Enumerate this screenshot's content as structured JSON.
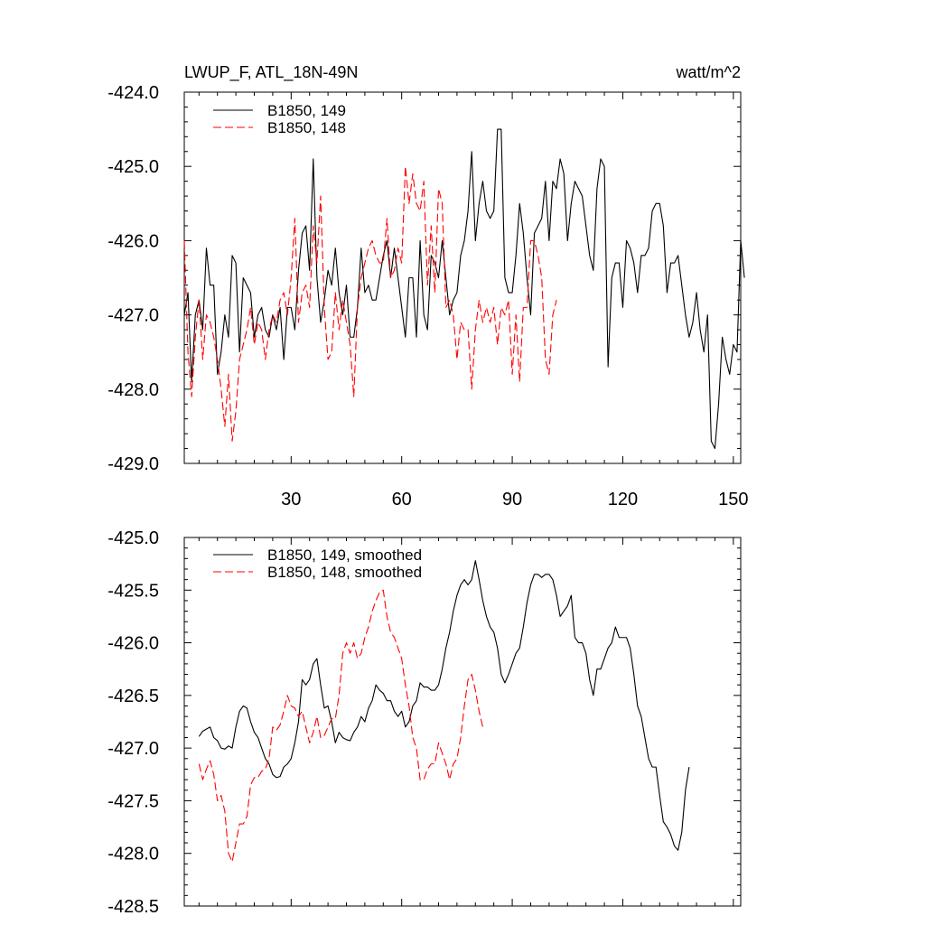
{
  "header": {
    "title": "LWUP_F, ATL_18N-49N",
    "units": "watt/m^2"
  },
  "colors": {
    "series_149": "#000000",
    "series_148": "#ff0000"
  },
  "chart_data": [
    {
      "type": "line",
      "title": "LWUP_F, ATL_18N-49N",
      "units": "watt/m^2",
      "xlabel": "",
      "ylabel": "",
      "xlim": [
        1,
        152
      ],
      "ylim": [
        -429,
        -424
      ],
      "xticks": [
        30,
        60,
        90,
        120,
        150
      ],
      "xtick_labels": [
        "30",
        "60",
        "90",
        "120",
        "150"
      ],
      "yticks": [
        -424,
        -425,
        -426,
        -427,
        -428,
        -429
      ],
      "ytick_labels": [
        "-424.0",
        "-425.0",
        "-426.0",
        "-427.0",
        "-428.0",
        "-429.0"
      ],
      "grid": false,
      "legend_position": "top-left",
      "series": [
        {
          "name": "B1850, 149",
          "color": "#000000",
          "dash": "solid",
          "x_start": 1,
          "values": [
            -427.0,
            -426.7,
            -427.9,
            -427.0,
            -426.8,
            -427.2,
            -426.1,
            -426.6,
            -426.6,
            -427.8,
            -427.5,
            -427.0,
            -427.3,
            -426.2,
            -426.3,
            -427.5,
            -426.5,
            -426.6,
            -426.7,
            -427.3,
            -427.0,
            -426.9,
            -427.2,
            -427.3,
            -427.0,
            -427.2,
            -426.9,
            -427.6,
            -426.9,
            -426.9,
            -427.2,
            -426.4,
            -425.9,
            -425.8,
            -426.4,
            -424.9,
            -426.5,
            -427.1,
            -426.8,
            -426.4,
            -426.6,
            -426.1,
            -426.7,
            -427.0,
            -426.6,
            -427.3,
            -427.3,
            -426.9,
            -426.1,
            -426.7,
            -426.6,
            -426.8,
            -426.8,
            -426.5,
            -426.2,
            -426.0,
            -426.5,
            -426.1,
            -426.5,
            -426.9,
            -427.3,
            -426.5,
            -426.5,
            -427.3,
            -426.0,
            -427.0,
            -427.2,
            -426.2,
            -426.3,
            -426.5,
            -426.0,
            -426.5,
            -427.0,
            -426.8,
            -426.7,
            -426.2,
            -426.0,
            -425.6,
            -424.8,
            -426.0,
            -425.5,
            -425.2,
            -425.6,
            -425.7,
            -425.6,
            -424.5,
            -424.5,
            -426.5,
            -426.7,
            -426.7,
            -426.2,
            -425.5,
            -425.9,
            -426.5,
            -427.0,
            -425.9,
            -425.8,
            -425.7,
            -425.2,
            -426.0,
            -425.2,
            -425.3,
            -424.9,
            -425.1,
            -426.0,
            -425.5,
            -425.2,
            -425.3,
            -425.4,
            -425.8,
            -426.2,
            -426.4,
            -425.3,
            -424.9,
            -425.0,
            -427.7,
            -426.5,
            -426.3,
            -426.3,
            -426.9,
            -426.0,
            -426.1,
            -426.3,
            -426.7,
            -426.2,
            -426.2,
            -426.1,
            -425.6,
            -425.5,
            -425.5,
            -425.8,
            -426.7,
            -426.3,
            -426.3,
            -426.2,
            -426.6,
            -427.0,
            -427.3,
            -427.1,
            -426.7,
            -427.2,
            -427.5,
            -427.0,
            -428.7,
            -428.8,
            -428.2,
            -427.3,
            -427.6,
            -427.8,
            -427.4,
            -427.5,
            -426.0,
            -426.5
          ]
        },
        {
          "name": "B1850, 148",
          "color": "#ff0000",
          "dash": "dashed",
          "x_start": 1,
          "values": [
            -426.0,
            -427.5,
            -428.1,
            -427.3,
            -426.8,
            -427.6,
            -427.0,
            -427.1,
            -427.3,
            -427.6,
            -428.0,
            -428.5,
            -427.8,
            -428.7,
            -428.3,
            -427.6,
            -427.4,
            -427.2,
            -426.9,
            -427.4,
            -427.1,
            -427.2,
            -427.6,
            -427.2,
            -427.0,
            -427.1,
            -426.8,
            -426.7,
            -427.0,
            -426.5,
            -425.7,
            -427.1,
            -426.7,
            -426.6,
            -426.9,
            -425.8,
            -426.3,
            -425.4,
            -426.9,
            -427.6,
            -427.5,
            -426.7,
            -427.2,
            -426.8,
            -427.1,
            -427.4,
            -428.1,
            -426.9,
            -426.5,
            -426.3,
            -426.1,
            -426.0,
            -426.2,
            -426.3,
            -426.3,
            -425.7,
            -426.5,
            -426.4,
            -426.1,
            -426.3,
            -425.0,
            -425.5,
            -425.1,
            -425.5,
            -425.6,
            -425.2,
            -426.6,
            -425.8,
            -426.7,
            -425.3,
            -425.5,
            -426.9,
            -426.8,
            -427.0,
            -427.6,
            -427.1,
            -427.2,
            -427.2,
            -428.0,
            -427.2,
            -426.8,
            -427.1,
            -426.9,
            -427.1,
            -426.9,
            -427.4,
            -426.9,
            -427.0,
            -426.8,
            -427.8,
            -427.0,
            -427.9,
            -426.9,
            -426.9,
            -426.0,
            -426.0,
            -426.2,
            -426.5,
            -427.6,
            -427.8,
            -427.0,
            -426.8
          ]
        }
      ]
    },
    {
      "type": "line",
      "title": "",
      "xlabel": "",
      "ylabel": "",
      "xlim": [
        1,
        152
      ],
      "ylim": [
        -428.5,
        -425.0
      ],
      "xticks": [
        30,
        60,
        90,
        120,
        150
      ],
      "xtick_labels": [],
      "yticks": [
        -425.0,
        -425.5,
        -426.0,
        -426.5,
        -427.0,
        -427.5,
        -428.0,
        -428.5
      ],
      "ytick_labels": [
        "-425.0",
        "-425.5",
        "-426.0",
        "-426.5",
        "-427.0",
        "-427.5",
        "-428.0",
        "-428.5"
      ],
      "grid": false,
      "legend_position": "top-left",
      "series": [
        {
          "name": "B1850, 149, smoothed",
          "color": "#000000",
          "dash": "solid",
          "x_start": 5,
          "values": [
            -426.89,
            -426.84,
            -426.82,
            -426.8,
            -426.9,
            -426.93,
            -427.0,
            -427.01,
            -426.98,
            -427.0,
            -426.8,
            -426.65,
            -426.6,
            -426.62,
            -426.75,
            -426.85,
            -426.9,
            -427.0,
            -427.1,
            -427.15,
            -427.25,
            -427.28,
            -427.27,
            -427.18,
            -427.15,
            -427.1,
            -426.95,
            -426.75,
            -426.35,
            -426.4,
            -426.35,
            -426.2,
            -426.15,
            -426.4,
            -426.62,
            -426.6,
            -426.75,
            -426.95,
            -426.85,
            -426.9,
            -426.92,
            -426.93,
            -426.85,
            -426.8,
            -426.7,
            -426.75,
            -426.62,
            -426.55,
            -426.4,
            -426.45,
            -426.48,
            -426.55,
            -426.55,
            -426.65,
            -426.7,
            -426.65,
            -426.8,
            -426.75,
            -426.6,
            -426.55,
            -426.38,
            -426.42,
            -426.42,
            -426.45,
            -426.45,
            -426.4,
            -426.25,
            -426.05,
            -425.9,
            -425.7,
            -425.55,
            -425.45,
            -425.4,
            -425.45,
            -425.4,
            -425.22,
            -425.4,
            -425.6,
            -425.75,
            -425.85,
            -425.9,
            -426.05,
            -426.3,
            -426.38,
            -426.3,
            -426.2,
            -426.1,
            -426.05,
            -425.85,
            -425.62,
            -425.45,
            -425.35,
            -425.35,
            -425.38,
            -425.35,
            -425.35,
            -425.4,
            -425.55,
            -425.75,
            -425.7,
            -425.65,
            -425.55,
            -425.95,
            -426.0,
            -426.0,
            -426.1,
            -426.35,
            -426.5,
            -426.25,
            -426.25,
            -426.15,
            -426.05,
            -426.0,
            -425.85,
            -425.95,
            -425.95,
            -425.95,
            -426.05,
            -426.3,
            -426.6,
            -426.7,
            -426.9,
            -427.1,
            -427.18,
            -427.18,
            -427.45,
            -427.7,
            -427.75,
            -427.82,
            -427.93,
            -427.97,
            -427.8,
            -427.4,
            -427.18
          ]
        },
        {
          "name": "B1850, 148, smoothed",
          "color": "#ff0000",
          "dash": "dashed",
          "x_start": 5,
          "values": [
            -427.15,
            -427.3,
            -427.2,
            -427.12,
            -427.25,
            -427.5,
            -427.45,
            -427.6,
            -428.0,
            -428.08,
            -427.9,
            -427.72,
            -427.72,
            -427.65,
            -427.35,
            -427.28,
            -427.28,
            -427.22,
            -427.2,
            -427.1,
            -426.8,
            -426.83,
            -426.78,
            -426.65,
            -426.5,
            -426.6,
            -426.62,
            -426.7,
            -426.65,
            -426.8,
            -426.95,
            -426.85,
            -426.7,
            -426.9,
            -426.88,
            -426.8,
            -426.72,
            -426.72,
            -426.5,
            -426.1,
            -426.0,
            -426.1,
            -426.0,
            -426.15,
            -426.1,
            -425.95,
            -425.85,
            -425.7,
            -425.6,
            -425.52,
            -425.5,
            -425.75,
            -425.9,
            -425.95,
            -426.05,
            -426.15,
            -426.4,
            -426.6,
            -426.9,
            -427.0,
            -427.3,
            -427.3,
            -427.2,
            -427.15,
            -427.15,
            -426.95,
            -427.05,
            -427.15,
            -427.3,
            -427.15,
            -427.1,
            -426.9,
            -426.6,
            -426.35,
            -426.3,
            -426.45,
            -426.65,
            -426.8
          ]
        }
      ]
    }
  ]
}
